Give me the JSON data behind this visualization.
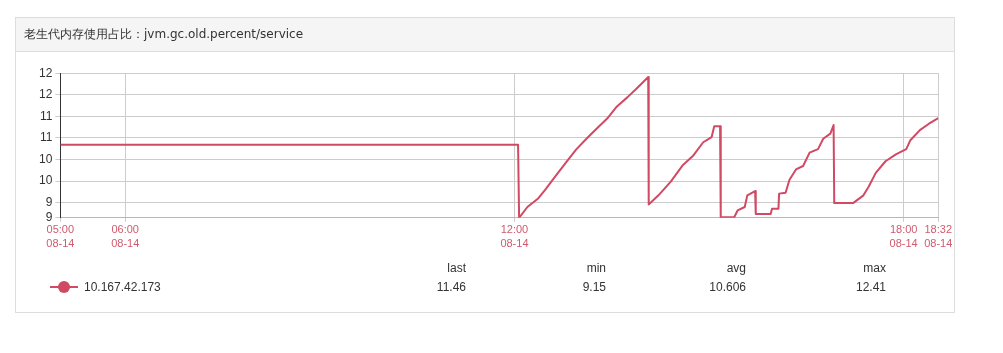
{
  "chart_data": {
    "type": "line",
    "title": "老生代内存使用占比：jvm.gc.old.percent/service",
    "x": [
      5,
      12.056,
      12.072,
      12.2,
      12.36,
      12.47,
      12.63,
      12.79,
      12.95,
      13.11,
      13.27,
      13.43,
      13.58,
      13.74,
      13.9,
      14.062,
      14.07,
      14.22,
      14.41,
      14.59,
      14.75,
      14.91,
      15.04,
      15.08,
      15.17,
      15.18,
      15.39,
      15.44,
      15.55,
      15.59,
      15.71,
      15.72,
      15.95,
      15.97,
      16.07,
      16.08,
      16.18,
      16.24,
      16.34,
      16.45,
      16.55,
      16.68,
      16.76,
      16.87,
      16.92,
      16.93,
      17.22,
      17.38,
      17.46,
      17.57,
      17.72,
      17.88,
      18.04,
      18.1,
      18.25,
      18.39,
      18.533
    ],
    "series": [
      {
        "name": "10.167.42.173",
        "color": "#d14a64",
        "values": [
          10.84,
          10.84,
          9.15,
          9.4,
          9.59,
          9.79,
          10.11,
          10.42,
          10.73,
          10.98,
          11.22,
          11.45,
          11.73,
          11.94,
          12.17,
          12.41,
          9.46,
          9.67,
          9.99,
          10.36,
          10.58,
          10.9,
          11.02,
          11.27,
          11.27,
          9.16,
          9.17,
          9.32,
          9.4,
          9.67,
          9.77,
          9.24,
          9.24,
          9.36,
          9.36,
          9.71,
          9.73,
          10.03,
          10.27,
          10.35,
          10.66,
          10.74,
          10.98,
          11.1,
          11.3,
          9.49,
          9.49,
          9.67,
          9.87,
          10.19,
          10.46,
          10.62,
          10.74,
          10.94,
          11.18,
          11.33,
          11.46
        ]
      }
    ],
    "xlim": [
      5,
      18.533
    ],
    "xticks": [
      {
        "value": 5,
        "label": "05:00"
      },
      {
        "value": 6,
        "label": "06:00"
      },
      {
        "value": 12,
        "label": "12:00"
      },
      {
        "value": 18,
        "label": "18:00"
      },
      {
        "value": 18.533,
        "label": "18:32"
      }
    ],
    "ylim": [
      9.15,
      12.5
    ],
    "yticks": [
      {
        "value": 9.15,
        "label": "9"
      },
      {
        "value": 9.5,
        "label": "9"
      },
      {
        "value": 10,
        "label": "10"
      },
      {
        "value": 10.5,
        "label": "10"
      },
      {
        "value": 11,
        "label": "11"
      },
      {
        "value": 11.5,
        "label": "11"
      },
      {
        "value": 12,
        "label": "12"
      },
      {
        "value": 12.5,
        "label": "12"
      }
    ],
    "grid": true,
    "legend": "bottom left",
    "line_style": "solid",
    "annotations": [
      "last",
      "min",
      "avg",
      "max",
      "11.46",
      "9.15",
      "10.606",
      "12.41",
      "08-14",
      "08-14",
      "08-14",
      "08-14",
      "08-14"
    ]
  }
}
